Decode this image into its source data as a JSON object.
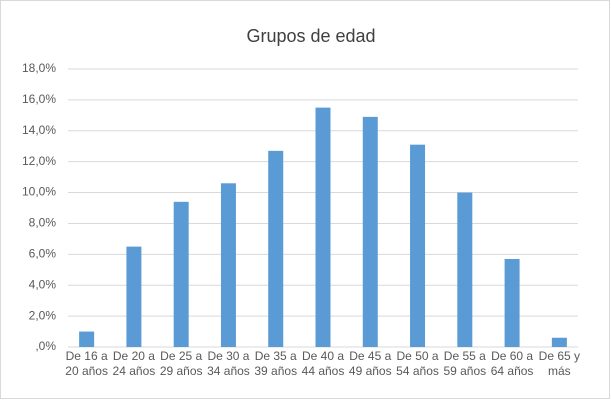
{
  "chart_data": {
    "type": "bar",
    "title": "Grupos de edad",
    "categories": [
      "De 16 a 20 años",
      "De 20 a 24 años",
      "De 25 a 29 años",
      "De 30 a 34 años",
      "De 35 a 39 años",
      "De 40 a 44 años",
      "De 45 a 49 años",
      "De 50 a 54 años",
      "De 55 a 59 años",
      "De 60 a 64 años",
      "De 65 y más"
    ],
    "values": [
      1.0,
      6.5,
      9.4,
      10.6,
      12.7,
      15.5,
      14.9,
      13.1,
      10.0,
      5.7,
      0.6
    ],
    "color": "#5b9bd5",
    "ylim": [
      0,
      18
    ],
    "yticks": [
      {
        "value": 0,
        "label": ",0%"
      },
      {
        "value": 2,
        "label": "2,0%"
      },
      {
        "value": 4,
        "label": "4,0%"
      },
      {
        "value": 6,
        "label": "6,0%"
      },
      {
        "value": 8,
        "label": "8,0%"
      },
      {
        "value": 10,
        "label": "10,0%"
      },
      {
        "value": 12,
        "label": "12,0%"
      },
      {
        "value": 14,
        "label": "14,0%"
      },
      {
        "value": 16,
        "label": "16,0%"
      },
      {
        "value": 18,
        "label": "18,0%"
      }
    ],
    "grid": true
  }
}
